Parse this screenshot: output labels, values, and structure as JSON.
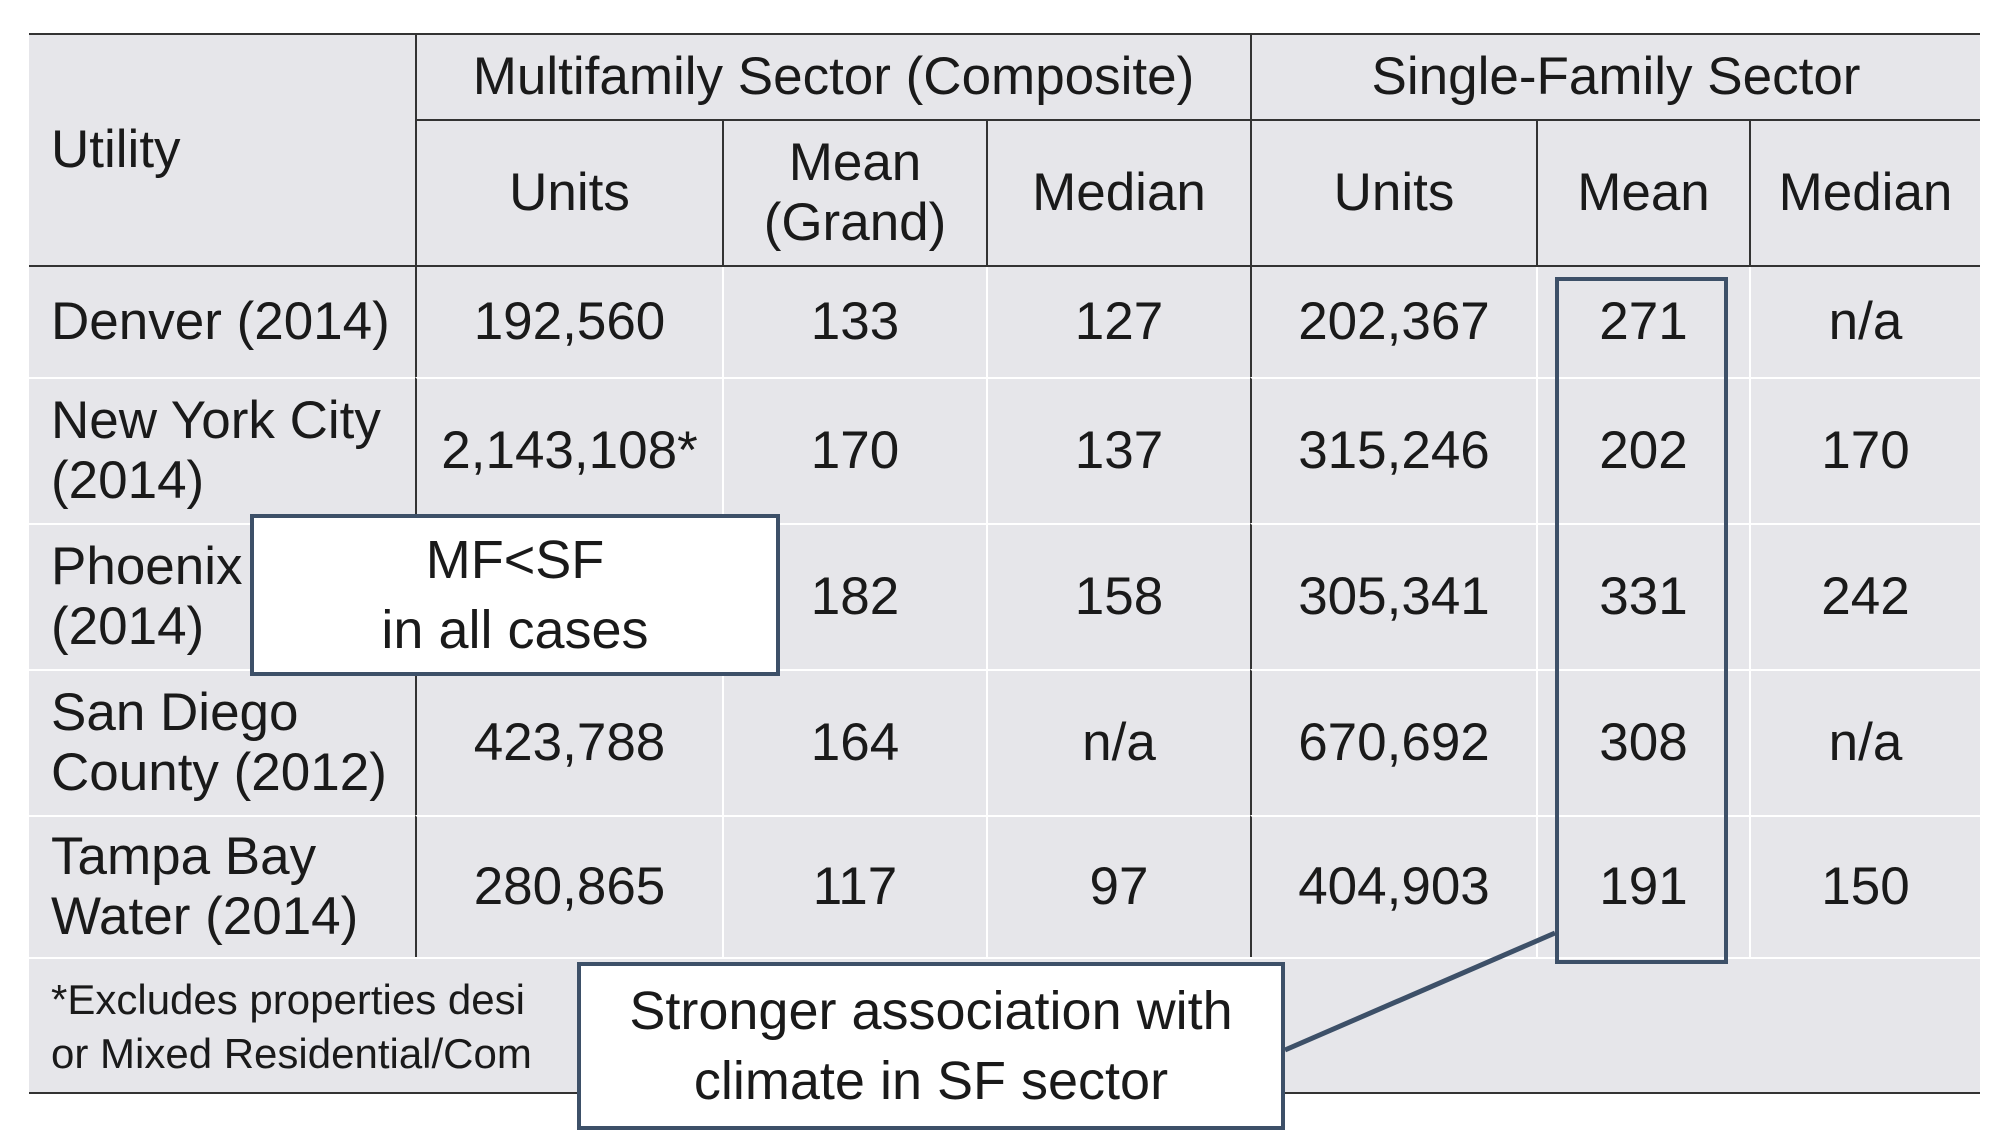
{
  "table": {
    "header": {
      "utility": "Utility",
      "mf_sector": "Multifamily Sector (Composite)",
      "sf_sector": "Single-Family Sector",
      "mf_units": "Units",
      "mf_mean_l1": "Mean",
      "mf_mean_l2": "(Grand)",
      "mf_median": "Median",
      "sf_units": "Units",
      "sf_mean": "Mean",
      "sf_median": "Median"
    },
    "rows": [
      {
        "utility_l1": "Denver (2014)",
        "utility_l2": "",
        "mf_units": "192,560",
        "mf_mean": "133",
        "mf_median": "127",
        "sf_units": "202,367",
        "sf_mean": "271",
        "sf_median": "n/a"
      },
      {
        "utility_l1": "New York City",
        "utility_l2": "(2014)",
        "mf_units": "2,143,108*",
        "mf_mean": "170",
        "mf_median": "137",
        "sf_units": "315,246",
        "sf_mean": "202",
        "sf_median": "170"
      },
      {
        "utility_l1": "Phoenix",
        "utility_l2": "(2014)",
        "mf_units": "",
        "mf_mean": "182",
        "mf_median": "158",
        "sf_units": "305,341",
        "sf_mean": "331",
        "sf_median": "242"
      },
      {
        "utility_l1": "San Diego",
        "utility_l2": "County (2012)",
        "mf_units": "423,788",
        "mf_mean": "164",
        "mf_median": "n/a",
        "sf_units": "670,692",
        "sf_mean": "308",
        "sf_median": "n/a"
      },
      {
        "utility_l1": "Tampa Bay",
        "utility_l2": "Water (2014)",
        "mf_units": "280,865",
        "mf_mean": "117",
        "mf_median": "97",
        "sf_units": "404,903",
        "sf_mean": "191",
        "sf_median": "150"
      }
    ],
    "footnote_l1": "*Excludes properties desi",
    "footnote_l2": "or Mixed Residential/Com"
  },
  "callouts": {
    "mf_lt_sf_l1": "MF<SF",
    "mf_lt_sf_l2": "in all cases",
    "climate_l1": "Stronger association with",
    "climate_l2": "climate in SF sector"
  },
  "colors": {
    "cell_bg": "#e6e6ea",
    "callout_border": "#3d5068",
    "rule": "#333333"
  }
}
